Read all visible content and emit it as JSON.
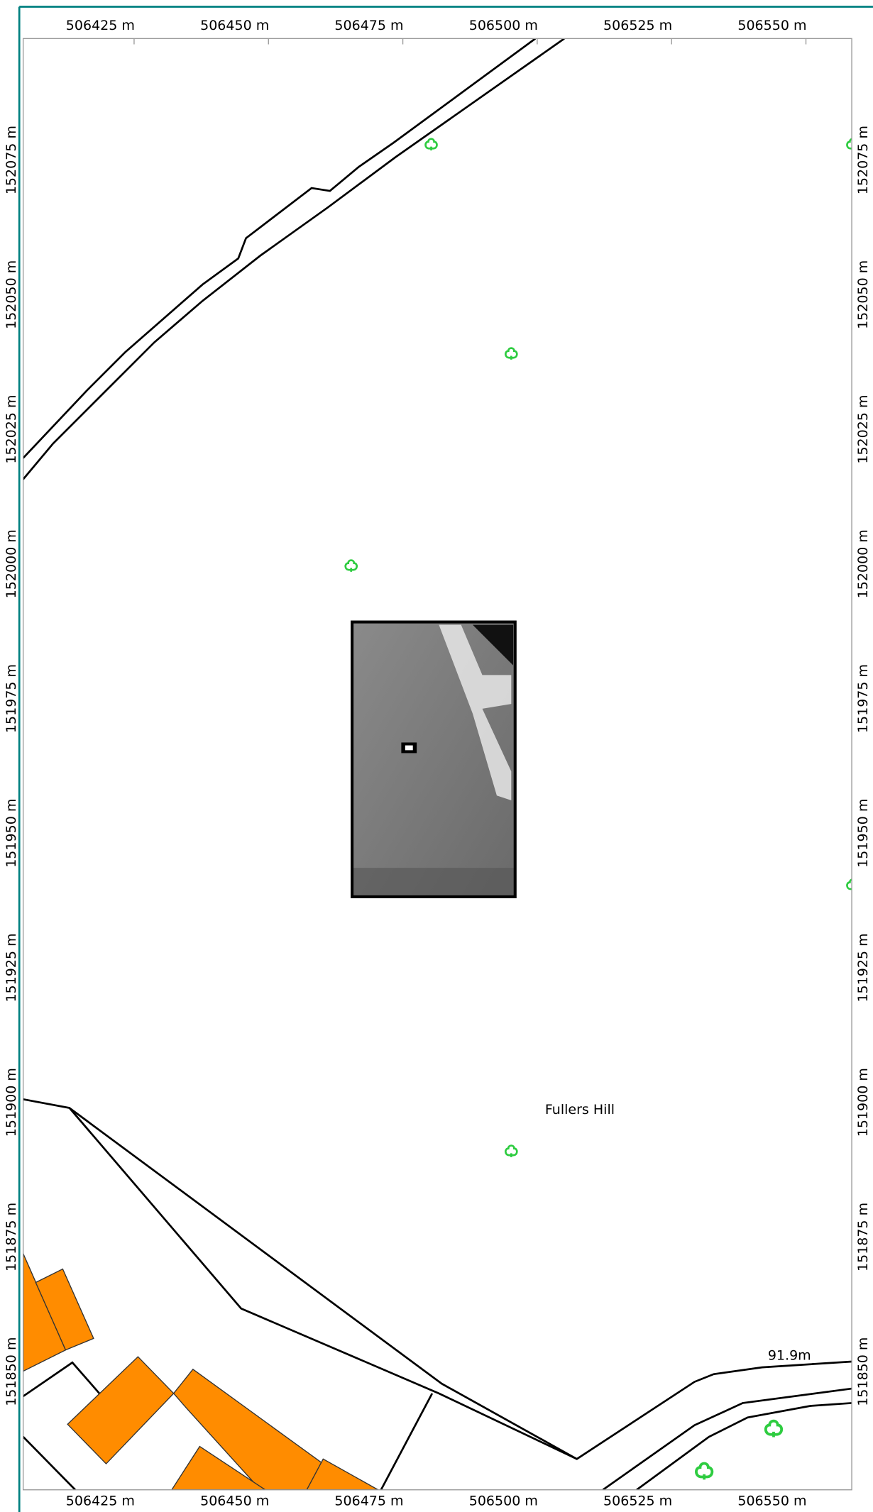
{
  "map": {
    "x_ticks": [
      "506425 m",
      "506450 m",
      "506475 m",
      "506500 m",
      "506525 m",
      "506550 m"
    ],
    "y_ticks": [
      "152075 m",
      "152050 m",
      "152025 m",
      "152000 m",
      "151975 m",
      "151950 m",
      "151925 m",
      "151900 m",
      "151875 m",
      "151850 m"
    ],
    "place_label": "Fullers Hill",
    "contour_label": "91.9m"
  }
}
